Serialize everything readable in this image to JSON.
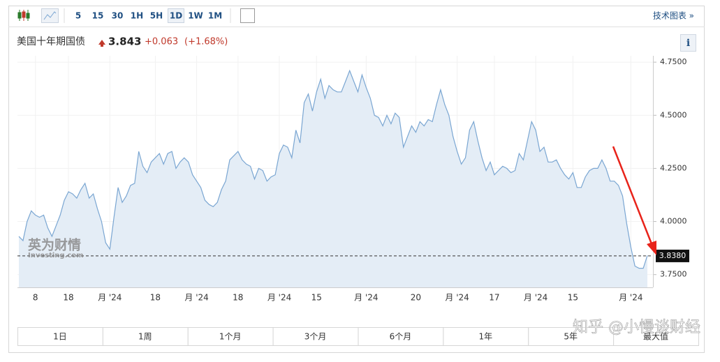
{
  "toolbar": {
    "intervals": [
      "5",
      "15",
      "30",
      "1H",
      "5H",
      "1D",
      "1W",
      "1M"
    ],
    "link": "技术图表 »"
  },
  "header": {
    "title": "美国十年期国债",
    "price": "3.843",
    "change": "+0.063",
    "change_pct": "(+1.68%)",
    "info": "i"
  },
  "watermark": {
    "brand": "英为财情",
    "site": "Investing.com",
    "overlay": "知乎 @小慢谈财经"
  },
  "ranges": [
    "1日",
    "1周",
    "1个月",
    "3个月",
    "6个月",
    "1年",
    "5年",
    "最大值"
  ],
  "chart_data": {
    "type": "area",
    "line_color": "#7aa6d2",
    "fill_color": "#e4edf6",
    "grid": true,
    "ylim": [
      3.69,
      4.78
    ],
    "yticks": [
      {
        "value": 3.75,
        "label": "3.7500"
      },
      {
        "value": 4.0,
        "label": "4.0000"
      },
      {
        "value": 4.25,
        "label": "4.2500"
      },
      {
        "value": 4.5,
        "label": "4.5000"
      },
      {
        "value": 4.75,
        "label": "4.7500"
      }
    ],
    "last_price": {
      "value": 3.838,
      "label": "3.8380"
    },
    "categories": [
      null,
      null,
      null,
      null,
      "8",
      null,
      null,
      null,
      null,
      null,
      null,
      null,
      "18",
      null,
      null,
      null,
      null,
      null,
      null,
      null,
      null,
      null,
      "月 '24",
      null,
      null,
      null,
      null,
      null,
      null,
      null,
      null,
      null,
      null,
      "18",
      null,
      null,
      null,
      null,
      null,
      null,
      null,
      null,
      null,
      "月 '24",
      null,
      null,
      null,
      null,
      null,
      null,
      null,
      null,
      null,
      "18",
      null,
      null,
      null,
      null,
      null,
      null,
      null,
      null,
      null,
      "月 '24",
      null,
      null,
      null,
      null,
      null,
      null,
      null,
      null,
      "15",
      null,
      null,
      null,
      null,
      null,
      null,
      null,
      null,
      null,
      null,
      null,
      "月 '24",
      null,
      null,
      null,
      null,
      null,
      null,
      null,
      null,
      null,
      null,
      null,
      "20",
      null,
      null,
      null,
      null,
      null,
      null,
      null,
      null,
      null,
      "月 '24",
      null,
      null,
      null,
      null,
      null,
      null,
      null,
      null,
      "17",
      null,
      null,
      null,
      null,
      null,
      null,
      null,
      null,
      null,
      "月 '24",
      null,
      null,
      null,
      null,
      null,
      null,
      null,
      null,
      "15",
      null,
      null,
      null,
      null,
      null,
      null,
      null,
      null,
      null,
      null,
      null,
      null,
      null,
      "月 '24",
      null,
      null,
      null,
      null
    ],
    "series": [
      {
        "values": [
          3.93,
          3.91,
          4.0,
          4.05,
          4.03,
          4.02,
          4.03,
          3.97,
          3.93,
          3.98,
          4.03,
          4.1,
          4.14,
          4.13,
          4.11,
          4.15,
          4.18,
          4.11,
          4.13,
          4.06,
          4.0,
          3.9,
          3.87,
          4.02,
          4.16,
          4.09,
          4.12,
          4.17,
          4.18,
          4.33,
          4.26,
          4.23,
          4.28,
          4.3,
          4.32,
          4.27,
          4.32,
          4.33,
          4.25,
          4.28,
          4.3,
          4.28,
          4.22,
          4.19,
          4.16,
          4.1,
          4.08,
          4.07,
          4.09,
          4.15,
          4.19,
          4.29,
          4.31,
          4.33,
          4.29,
          4.27,
          4.26,
          4.2,
          4.25,
          4.24,
          4.19,
          4.21,
          4.22,
          4.32,
          4.36,
          4.35,
          4.3,
          4.43,
          4.37,
          4.56,
          4.6,
          4.52,
          4.61,
          4.67,
          4.58,
          4.64,
          4.62,
          4.61,
          4.61,
          4.66,
          4.71,
          4.66,
          4.61,
          4.69,
          4.63,
          4.58,
          4.5,
          4.49,
          4.45,
          4.5,
          4.46,
          4.51,
          4.49,
          4.35,
          4.4,
          4.45,
          4.42,
          4.47,
          4.45,
          4.48,
          4.47,
          4.55,
          4.62,
          4.55,
          4.5,
          4.4,
          4.33,
          4.27,
          4.3,
          4.43,
          4.47,
          4.38,
          4.3,
          4.24,
          4.28,
          4.22,
          4.24,
          4.26,
          4.25,
          4.23,
          4.24,
          4.32,
          4.29,
          4.38,
          4.47,
          4.43,
          4.33,
          4.35,
          4.28,
          4.28,
          4.29,
          4.25,
          4.22,
          4.2,
          4.23,
          4.16,
          4.16,
          4.21,
          4.24,
          4.25,
          4.25,
          4.29,
          4.25,
          4.19,
          4.19,
          4.17,
          4.12,
          3.99,
          3.88,
          3.79,
          3.78,
          3.78,
          3.84
        ]
      }
    ]
  }
}
